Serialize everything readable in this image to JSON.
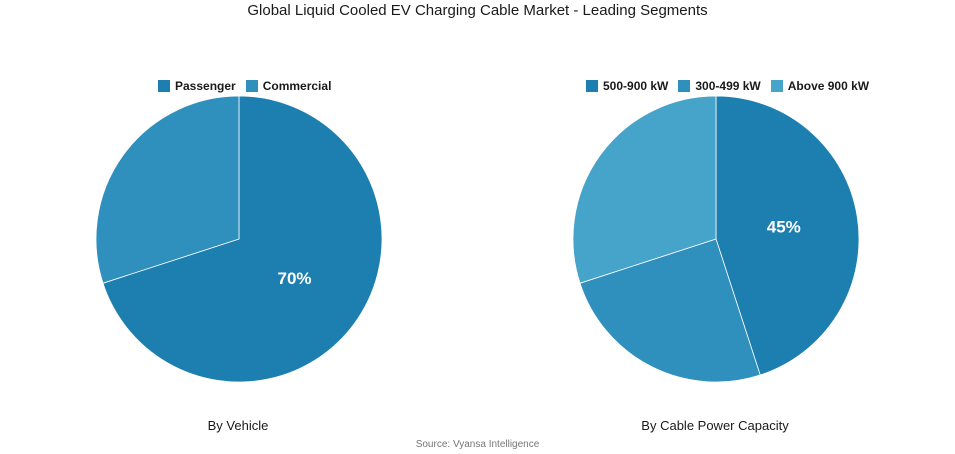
{
  "title": "Global Liquid Cooled EV Charging Cable Market - Leading Segments",
  "source": "Source: Vyansa Intelligence",
  "chart_data": [
    {
      "type": "pie",
      "caption": "By Vehicle",
      "legend_position": "top",
      "slices": [
        {
          "label": "Passenger",
          "value": 70,
          "color": "#1c7fb0",
          "show_label": true
        },
        {
          "label": "Commercial",
          "value": 30,
          "color": "#2f8fbd",
          "show_label": false
        }
      ]
    },
    {
      "type": "pie",
      "caption": "By Cable Power Capacity",
      "legend_position": "top",
      "slices": [
        {
          "label": "500-900 kW",
          "value": 45,
          "color": "#1c7fb0",
          "show_label": true
        },
        {
          "label": "300-499 kW",
          "value": 25,
          "color": "#2f8fbd",
          "show_label": false
        },
        {
          "label": "Above 900 kW",
          "value": 30,
          "color": "#46a3c9",
          "show_label": false
        }
      ]
    }
  ]
}
